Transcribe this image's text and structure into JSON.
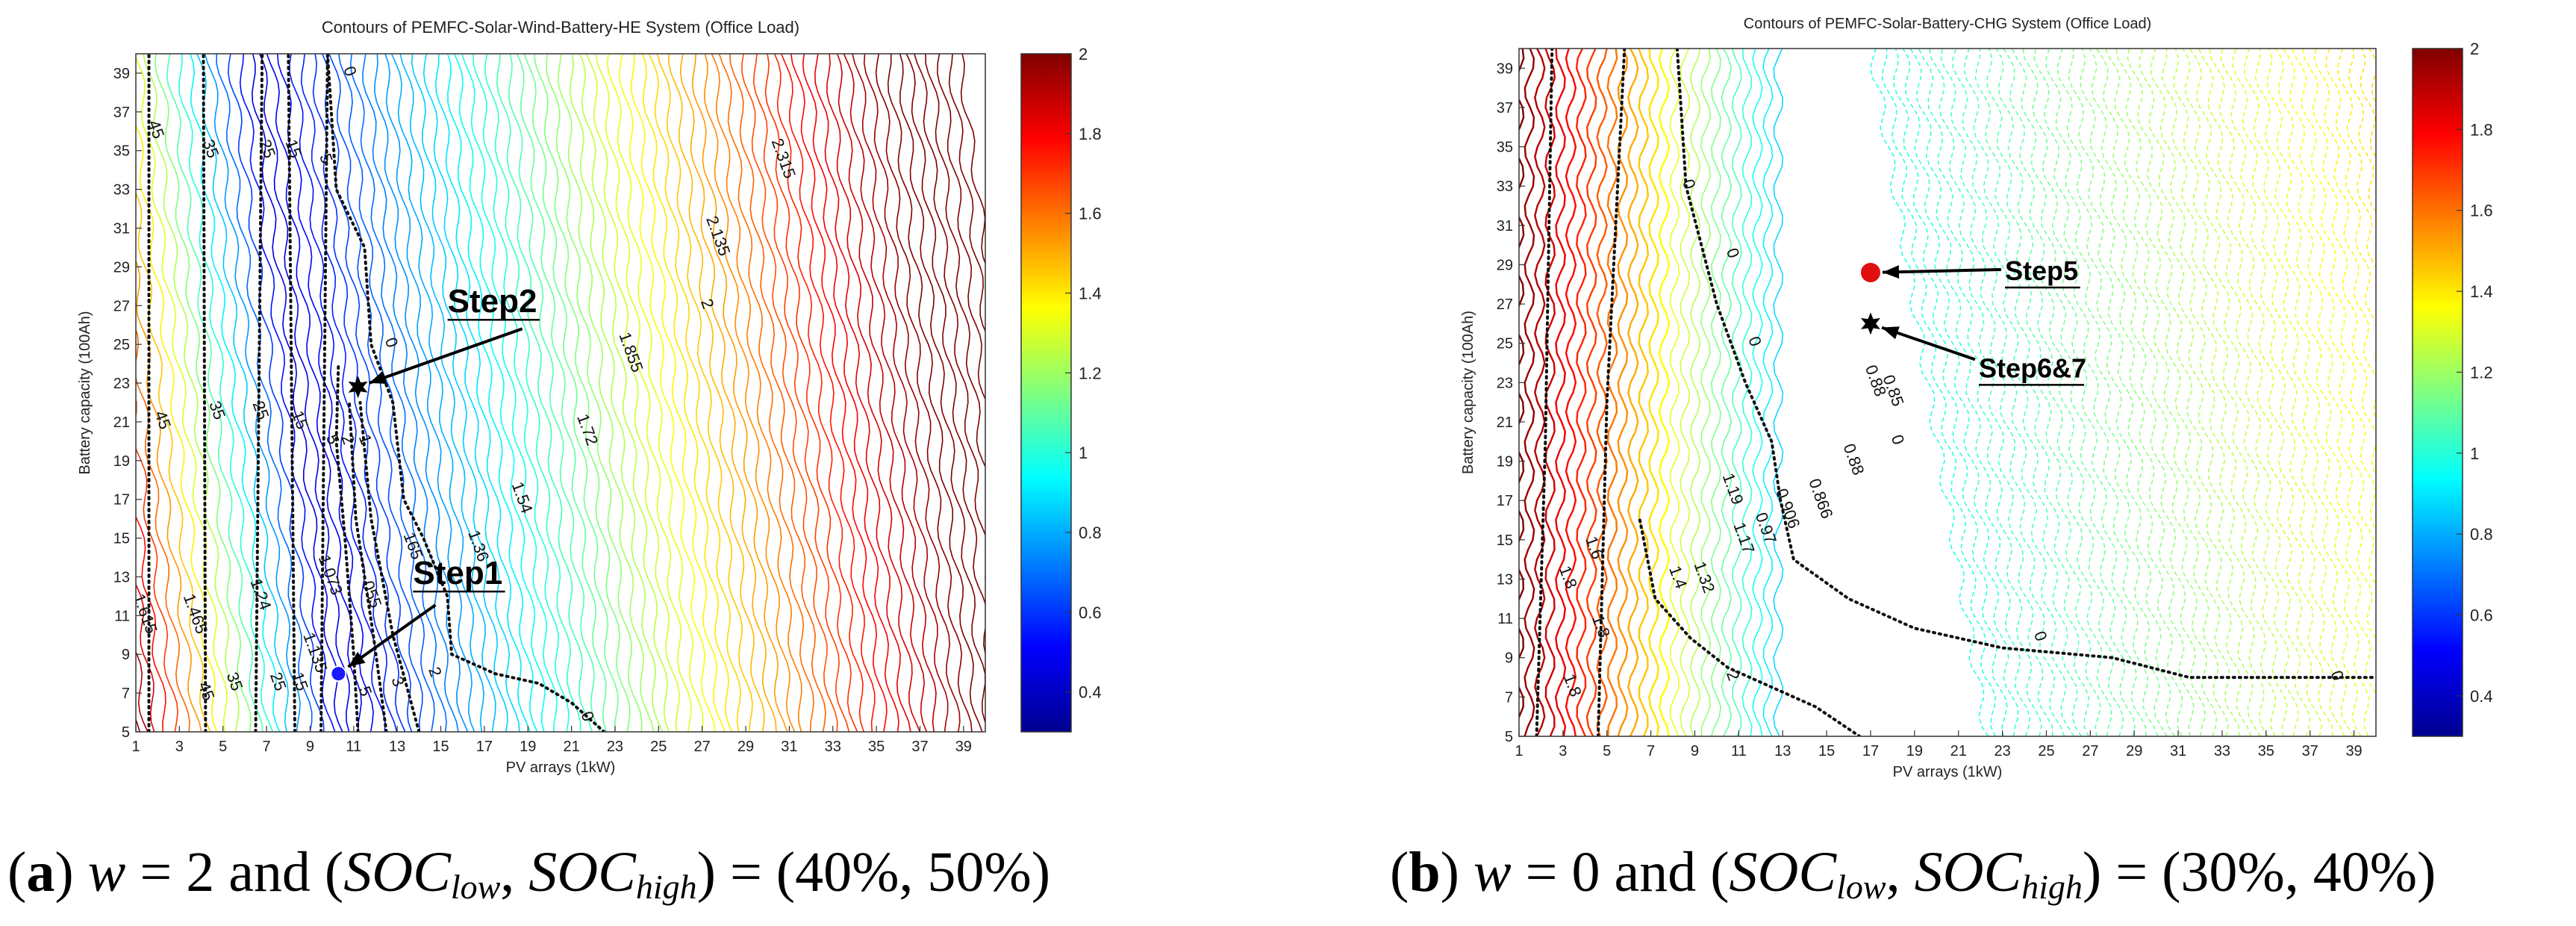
{
  "figure": {
    "caption_a": {
      "label": "a",
      "w_text": "w",
      "rest": " = 2 and (",
      "soc": "SOC",
      "low": "low",
      "high": "high",
      "tail": ") = (40%, 50%)"
    },
    "caption_b": {
      "label": "b",
      "w_text": "w",
      "rest": " = 0 and (",
      "soc": "SOC",
      "low": "low",
      "high": "high",
      "tail": ") = (30%, 40%)"
    }
  },
  "chart_data": [
    {
      "type": "heatmap",
      "subtype": "contour",
      "title": "Contours of PEMFC-Solar-Wind-Battery-HE System (Office Load)",
      "xlabel": "PV arrays (1kW)",
      "ylabel": "Battery capacity (100Ah)",
      "xlim": [
        1,
        40
      ],
      "ylim": [
        5,
        40
      ],
      "x_ticks": [
        "1",
        "3",
        "5",
        "7",
        "9",
        "11",
        "13",
        "15",
        "17",
        "19",
        "21",
        "23",
        "25",
        "27",
        "29",
        "31",
        "33",
        "35",
        "37",
        "39"
      ],
      "y_ticks": [
        "5",
        "7",
        "9",
        "11",
        "13",
        "15",
        "17",
        "19",
        "21",
        "23",
        "25",
        "27",
        "29",
        "31",
        "33",
        "35",
        "37",
        "39"
      ],
      "colorbar": {
        "min": 0.3,
        "max": 2,
        "ticks": [
          "2",
          "1.8",
          "1.6",
          "1.4",
          "1.2",
          "1",
          "0.8",
          "0.6",
          "0.4"
        ],
        "colormap": "jet"
      },
      "contour_labels": [
        {
          "text": "2.315",
          "x": 30.5,
          "y": 34.5
        },
        {
          "text": "2.135",
          "x": 27.5,
          "y": 30.5
        },
        {
          "text": "2",
          "x": 27.0,
          "y": 27.0
        },
        {
          "text": "1.855",
          "x": 23.5,
          "y": 24.5
        },
        {
          "text": "1.72",
          "x": 21.5,
          "y": 20.5
        },
        {
          "text": "1.54",
          "x": 18.5,
          "y": 17.0
        },
        {
          "text": "1.36",
          "x": 16.5,
          "y": 14.5
        },
        {
          "text": "1.073",
          "x": 9.7,
          "y": 13.0
        },
        {
          "text": "1.465",
          "x": 3.5,
          "y": 11.0
        },
        {
          "text": "1.24",
          "x": 6.5,
          "y": 12.0
        },
        {
          "text": "1.135",
          "x": 9.0,
          "y": 9.0
        },
        {
          "text": "1.615",
          "x": 1.2,
          "y": 11.0
        },
        {
          "text": "45",
          "x": 1.7,
          "y": 36.0
        },
        {
          "text": "35",
          "x": 4.2,
          "y": 35.0
        },
        {
          "text": "25",
          "x": 6.8,
          "y": 35.0
        },
        {
          "text": "15",
          "x": 8.0,
          "y": 35.0
        },
        {
          "text": "5",
          "x": 9.5,
          "y": 34.5
        },
        {
          "text": "0",
          "x": 10.6,
          "y": 39.0
        },
        {
          "text": "45",
          "x": 2.0,
          "y": 21.0
        },
        {
          "text": "35",
          "x": 4.5,
          "y": 21.5
        },
        {
          "text": "25",
          "x": 6.5,
          "y": 21.5
        },
        {
          "text": "15",
          "x": 8.3,
          "y": 21.0
        },
        {
          "text": "5",
          "x": 9.8,
          "y": 20.0
        },
        {
          "text": "2",
          "x": 10.5,
          "y": 20.0
        },
        {
          "text": "1",
          "x": 11.3,
          "y": 20.0
        },
        {
          "text": "0",
          "x": 12.5,
          "y": 25.0
        },
        {
          "text": "45",
          "x": 4.0,
          "y": 7.0
        },
        {
          "text": "35",
          "x": 5.3,
          "y": 7.5
        },
        {
          "text": "25",
          "x": 7.3,
          "y": 7.5
        },
        {
          "text": "15",
          "x": 8.3,
          "y": 7.5
        },
        {
          "text": "5",
          "x": 11.3,
          "y": 7.0
        },
        {
          "text": "3",
          "x": 12.8,
          "y": 7.5
        },
        {
          "text": "2",
          "x": 14.5,
          "y": 8.0
        },
        {
          "text": "165",
          "x": 13.5,
          "y": 14.5
        },
        {
          "text": "055",
          "x": 11.6,
          "y": 12.0
        },
        {
          "text": "0",
          "x": 21.5,
          "y": 5.7
        }
      ],
      "annotations": [
        {
          "label": "Step2",
          "x": 11.2,
          "y": 22.8,
          "marker": "star",
          "color": "#000000"
        },
        {
          "label": "Step1",
          "x": 10.3,
          "y": 8.0,
          "marker": "circle",
          "color": "#1a1aff"
        }
      ]
    },
    {
      "type": "heatmap",
      "subtype": "contour",
      "title": "Contours of PEMFC-Solar-Battery-CHG System (Office Load)",
      "xlabel": "PV arrays (1kW)",
      "ylabel": "Battery capacity (100Ah)",
      "xlim": [
        1,
        40
      ],
      "ylim": [
        5,
        40
      ],
      "x_ticks": [
        "1",
        "3",
        "5",
        "7",
        "9",
        "11",
        "13",
        "15",
        "17",
        "19",
        "21",
        "23",
        "25",
        "27",
        "29",
        "31",
        "33",
        "35",
        "37",
        "39"
      ],
      "y_ticks": [
        "5",
        "7",
        "9",
        "11",
        "13",
        "15",
        "17",
        "19",
        "21",
        "23",
        "25",
        "27",
        "29",
        "31",
        "33",
        "35",
        "37",
        "39"
      ],
      "colorbar": {
        "min": 0.3,
        "max": 2,
        "ticks": [
          "2",
          "1.8",
          "1.6",
          "1.4",
          "1.2",
          "1",
          "0.8",
          "0.6",
          "0.4"
        ],
        "colormap": "jet"
      },
      "contour_labels": [
        {
          "text": "1.19",
          "x": 10.5,
          "y": 17.5
        },
        {
          "text": "1.17",
          "x": 11.0,
          "y": 15.0
        },
        {
          "text": "0.97",
          "x": 12.0,
          "y": 15.5
        },
        {
          "text": "0.906",
          "x": 13.0,
          "y": 16.5
        },
        {
          "text": "0.866",
          "x": 14.5,
          "y": 17.0
        },
        {
          "text": "0.88",
          "x": 16.0,
          "y": 19.0
        },
        {
          "text": "0.88",
          "x": 17.0,
          "y": 23.0
        },
        {
          "text": "0.85",
          "x": 17.8,
          "y": 22.5
        },
        {
          "text": "1.6",
          "x": 4.2,
          "y": 14.5
        },
        {
          "text": "1.8",
          "x": 3.0,
          "y": 13.0
        },
        {
          "text": "1.4",
          "x": 8.0,
          "y": 13.0
        },
        {
          "text": "1.32",
          "x": 9.2,
          "y": 13.0
        },
        {
          "text": "1.8",
          "x": 4.5,
          "y": 10.5
        },
        {
          "text": "1.8",
          "x": 3.2,
          "y": 7.5
        },
        {
          "text": "0",
          "x": 8.5,
          "y": 33.0
        },
        {
          "text": "0",
          "x": 10.5,
          "y": 29.5
        },
        {
          "text": "0",
          "x": 11.5,
          "y": 25.0
        },
        {
          "text": "0",
          "x": 18.0,
          "y": 20.0
        },
        {
          "text": "2",
          "x": 10.5,
          "y": 8.0
        },
        {
          "text": "0",
          "x": 24.5,
          "y": 10.0
        },
        {
          "text": "0",
          "x": 38.0,
          "y": 8.0
        }
      ],
      "annotations": [
        {
          "label": "Step5",
          "x": 17.0,
          "y": 28.6,
          "marker": "circle",
          "color": "#e01010"
        },
        {
          "label": "Step6&7",
          "x": 17.0,
          "y": 26.0,
          "marker": "star",
          "color": "#000000"
        }
      ]
    }
  ]
}
